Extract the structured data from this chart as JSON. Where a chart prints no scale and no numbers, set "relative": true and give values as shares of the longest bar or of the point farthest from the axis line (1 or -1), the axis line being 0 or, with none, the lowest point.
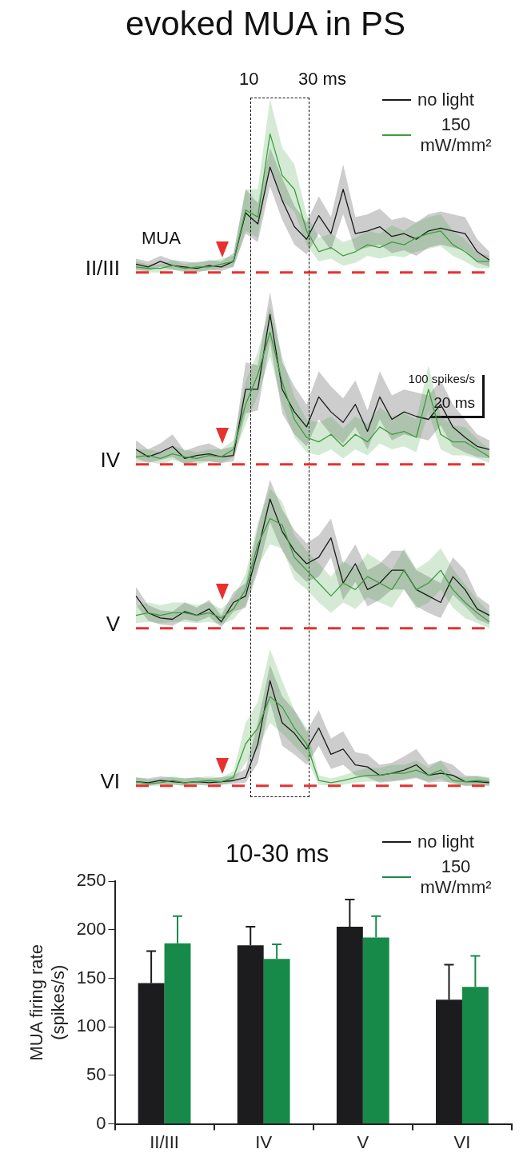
{
  "chart_data": [
    {
      "type": "line",
      "title": "evoked MUA in PS",
      "ylabel": "II/III",
      "relative": true,
      "legend": "top right",
      "annotations": [
        "MUA",
        "10",
        "30 ms",
        "100 spikes/s",
        "20 ms"
      ],
      "categories": [
        null,
        null,
        null,
        null,
        null,
        null,
        null,
        null,
        null,
        null,
        null,
        null,
        null,
        null,
        null,
        null,
        null,
        null,
        null,
        null,
        null,
        null,
        null,
        null,
        null,
        null,
        null,
        null,
        null,
        null
      ],
      "series": [
        {
          "name": "no light",
          "color": "#1a1a1a",
          "values": [
            0.06,
            0.04,
            0.08,
            0.05,
            0.04,
            0.03,
            0.05,
            0.04,
            0.08,
            0.43,
            0.35,
            0.76,
            0.52,
            0.33,
            0.24,
            0.41,
            0.28,
            0.6,
            0.28,
            0.3,
            0.33,
            0.26,
            0.28,
            0.24,
            0.3,
            0.32,
            0.3,
            0.28,
            0.15,
            0.09
          ],
          "upper": [
            0.1,
            0.08,
            0.12,
            0.09,
            0.08,
            0.07,
            0.09,
            0.08,
            0.14,
            0.6,
            0.5,
            0.9,
            0.68,
            0.48,
            0.36,
            0.55,
            0.4,
            0.78,
            0.4,
            0.42,
            0.46,
            0.38,
            0.4,
            0.36,
            0.42,
            0.44,
            0.42,
            0.4,
            0.24,
            0.15
          ],
          "lower": [
            0.02,
            0.01,
            0.04,
            0.02,
            0.01,
            0.0,
            0.02,
            0.01,
            0.04,
            0.28,
            0.22,
            0.62,
            0.38,
            0.2,
            0.13,
            0.28,
            0.16,
            0.42,
            0.16,
            0.18,
            0.2,
            0.14,
            0.16,
            0.12,
            0.18,
            0.2,
            0.18,
            0.16,
            0.07,
            0.04
          ]
        },
        {
          "name": "150 mW/mm²",
          "color": "#3c9e3c",
          "values": [
            0.04,
            0.03,
            0.03,
            0.05,
            0.03,
            0.04,
            0.04,
            0.06,
            0.08,
            0.45,
            0.4,
            1.0,
            0.7,
            0.6,
            0.3,
            0.15,
            0.18,
            0.12,
            0.15,
            0.2,
            0.18,
            0.22,
            0.2,
            0.25,
            0.28,
            0.3,
            0.2,
            0.15,
            0.08,
            0.08
          ],
          "upper": [
            0.08,
            0.06,
            0.06,
            0.09,
            0.06,
            0.08,
            0.08,
            0.1,
            0.12,
            0.6,
            0.6,
            1.25,
            0.9,
            0.78,
            0.42,
            0.25,
            0.28,
            0.22,
            0.25,
            0.3,
            0.28,
            0.34,
            0.3,
            0.36,
            0.4,
            0.42,
            0.3,
            0.24,
            0.14,
            0.12
          ],
          "lower": [
            0.01,
            0.0,
            0.0,
            0.02,
            0.0,
            0.01,
            0.01,
            0.03,
            0.04,
            0.3,
            0.25,
            0.78,
            0.52,
            0.44,
            0.2,
            0.08,
            0.1,
            0.05,
            0.07,
            0.12,
            0.1,
            0.12,
            0.11,
            0.15,
            0.17,
            0.19,
            0.12,
            0.08,
            0.03,
            0.03
          ]
        }
      ]
    },
    {
      "type": "line",
      "ylabel": "IV",
      "relative": true,
      "categories": [
        null,
        null,
        null,
        null,
        null,
        null,
        null,
        null,
        null,
        null,
        null,
        null,
        null,
        null,
        null,
        null,
        null,
        null,
        null,
        null,
        null,
        null,
        null,
        null,
        null,
        null,
        null,
        null,
        null,
        null
      ],
      "series": [
        {
          "color": "#1a1a1a",
          "values": [
            0.1,
            0.05,
            0.08,
            0.12,
            0.04,
            0.06,
            0.07,
            0.05,
            0.06,
            0.5,
            0.5,
            1.0,
            0.5,
            0.35,
            0.25,
            0.45,
            0.35,
            0.28,
            0.4,
            0.22,
            0.45,
            0.3,
            0.35,
            0.32,
            0.3,
            0.4,
            0.25,
            0.18,
            0.12,
            0.1
          ],
          "upper": [
            0.16,
            0.1,
            0.14,
            0.2,
            0.09,
            0.12,
            0.14,
            0.1,
            0.12,
            0.68,
            0.66,
            1.15,
            0.68,
            0.52,
            0.4,
            0.62,
            0.52,
            0.44,
            0.56,
            0.36,
            0.62,
            0.46,
            0.5,
            0.48,
            0.46,
            0.56,
            0.4,
            0.3,
            0.2,
            0.16
          ],
          "lower": [
            0.04,
            0.01,
            0.03,
            0.05,
            0.0,
            0.02,
            0.02,
            0.01,
            0.02,
            0.34,
            0.36,
            0.82,
            0.34,
            0.2,
            0.12,
            0.3,
            0.2,
            0.14,
            0.25,
            0.1,
            0.3,
            0.16,
            0.2,
            0.18,
            0.16,
            0.26,
            0.12,
            0.08,
            0.05,
            0.04
          ]
        },
        {
          "color": "#3c9e3c",
          "values": [
            0.05,
            0.06,
            0.04,
            0.07,
            0.05,
            0.04,
            0.06,
            0.05,
            0.1,
            0.4,
            0.6,
            0.88,
            0.55,
            0.3,
            0.18,
            0.15,
            0.2,
            0.12,
            0.2,
            0.15,
            0.25,
            0.2,
            0.22,
            0.18,
            0.5,
            0.2,
            0.15,
            0.15,
            0.1,
            0.05
          ],
          "upper": [
            0.1,
            0.1,
            0.08,
            0.12,
            0.1,
            0.08,
            0.1,
            0.1,
            0.16,
            0.55,
            0.75,
            1.05,
            0.72,
            0.45,
            0.3,
            0.28,
            0.32,
            0.24,
            0.32,
            0.27,
            0.38,
            0.32,
            0.34,
            0.3,
            0.66,
            0.32,
            0.26,
            0.25,
            0.17,
            0.1
          ],
          "lower": [
            0.01,
            0.02,
            0.0,
            0.03,
            0.01,
            0.0,
            0.02,
            0.01,
            0.05,
            0.27,
            0.46,
            0.72,
            0.4,
            0.18,
            0.08,
            0.06,
            0.1,
            0.04,
            0.1,
            0.06,
            0.14,
            0.1,
            0.12,
            0.08,
            0.35,
            0.1,
            0.06,
            0.06,
            0.04,
            0.01
          ]
        }
      ]
    },
    {
      "type": "line",
      "ylabel": "V",
      "relative": true,
      "categories": [
        null,
        null,
        null,
        null,
        null,
        null,
        null,
        null,
        null,
        null,
        null,
        null,
        null,
        null,
        null,
        null,
        null,
        null,
        null,
        null,
        null,
        null,
        null,
        null,
        null,
        null,
        null,
        null,
        null,
        null
      ],
      "series": [
        {
          "color": "#1a1a1a",
          "values": [
            0.25,
            0.12,
            0.08,
            0.07,
            0.13,
            0.1,
            0.15,
            0.05,
            0.2,
            0.25,
            0.6,
            1.0,
            0.75,
            0.6,
            0.5,
            0.55,
            0.7,
            0.35,
            0.5,
            0.3,
            0.35,
            0.45,
            0.45,
            0.3,
            0.25,
            0.2,
            0.4,
            0.3,
            0.15,
            0.1
          ],
          "upper": [
            0.32,
            0.18,
            0.14,
            0.13,
            0.2,
            0.16,
            0.22,
            0.1,
            0.28,
            0.35,
            0.78,
            1.15,
            0.92,
            0.76,
            0.66,
            0.72,
            0.85,
            0.5,
            0.65,
            0.45,
            0.5,
            0.6,
            0.6,
            0.45,
            0.4,
            0.35,
            0.55,
            0.45,
            0.25,
            0.18
          ],
          "lower": [
            0.18,
            0.06,
            0.03,
            0.02,
            0.07,
            0.05,
            0.09,
            0.01,
            0.13,
            0.16,
            0.44,
            0.82,
            0.6,
            0.45,
            0.36,
            0.4,
            0.55,
            0.22,
            0.36,
            0.17,
            0.22,
            0.3,
            0.3,
            0.17,
            0.12,
            0.08,
            0.26,
            0.17,
            0.07,
            0.03
          ]
        },
        {
          "color": "#3c9e3c",
          "values": [
            0.1,
            0.12,
            0.1,
            0.12,
            0.12,
            0.1,
            0.12,
            0.08,
            0.15,
            0.3,
            0.65,
            0.85,
            0.8,
            0.55,
            0.45,
            0.35,
            0.25,
            0.35,
            0.3,
            0.4,
            0.35,
            0.3,
            0.45,
            0.3,
            0.35,
            0.45,
            0.3,
            0.2,
            0.12,
            0.05
          ],
          "upper": [
            0.17,
            0.2,
            0.18,
            0.2,
            0.2,
            0.18,
            0.2,
            0.15,
            0.24,
            0.42,
            0.82,
            1.08,
            0.98,
            0.72,
            0.6,
            0.5,
            0.4,
            0.52,
            0.46,
            0.58,
            0.52,
            0.45,
            0.62,
            0.46,
            0.52,
            0.62,
            0.46,
            0.34,
            0.22,
            0.12
          ],
          "lower": [
            0.04,
            0.05,
            0.04,
            0.05,
            0.05,
            0.04,
            0.05,
            0.03,
            0.07,
            0.18,
            0.48,
            0.65,
            0.62,
            0.38,
            0.3,
            0.2,
            0.12,
            0.2,
            0.15,
            0.24,
            0.2,
            0.16,
            0.3,
            0.15,
            0.2,
            0.3,
            0.16,
            0.08,
            0.04,
            0.0
          ]
        }
      ]
    },
    {
      "type": "line",
      "ylabel": "VI",
      "relative": true,
      "categories": [
        null,
        null,
        null,
        null,
        null,
        null,
        null,
        null,
        null,
        null,
        null,
        null,
        null,
        null,
        null,
        null,
        null,
        null,
        null,
        null,
        null,
        null,
        null,
        null,
        null,
        null,
        null,
        null,
        null,
        null
      ],
      "series": [
        {
          "color": "#1a1a1a",
          "values": [
            0.04,
            0.03,
            0.05,
            0.04,
            0.03,
            0.04,
            0.03,
            0.04,
            0.05,
            0.08,
            0.4,
            1.0,
            0.6,
            0.5,
            0.35,
            0.55,
            0.3,
            0.35,
            0.2,
            0.18,
            0.1,
            0.12,
            0.15,
            0.2,
            0.1,
            0.12,
            0.1,
            0.04,
            0.04,
            0.03
          ],
          "upper": [
            0.08,
            0.07,
            0.09,
            0.08,
            0.07,
            0.08,
            0.07,
            0.08,
            0.1,
            0.16,
            0.6,
            1.15,
            0.85,
            0.72,
            0.52,
            0.72,
            0.45,
            0.52,
            0.32,
            0.3,
            0.2,
            0.22,
            0.28,
            0.35,
            0.2,
            0.24,
            0.2,
            0.1,
            0.09,
            0.07
          ],
          "lower": [
            0.01,
            0.0,
            0.02,
            0.01,
            0.0,
            0.01,
            0.0,
            0.01,
            0.02,
            0.03,
            0.22,
            0.8,
            0.38,
            0.3,
            0.2,
            0.38,
            0.16,
            0.2,
            0.1,
            0.08,
            0.03,
            0.04,
            0.06,
            0.08,
            0.03,
            0.04,
            0.03,
            0.0,
            0.0,
            0.0
          ]
        },
        {
          "color": "#3c9e3c",
          "values": [
            0.04,
            0.02,
            0.03,
            0.05,
            0.03,
            0.04,
            0.05,
            0.04,
            0.08,
            0.4,
            0.55,
            0.85,
            0.75,
            0.55,
            0.4,
            0.05,
            0.03,
            0.05,
            0.08,
            0.1,
            0.1,
            0.12,
            0.12,
            0.15,
            0.1,
            0.15,
            0.05,
            0.04,
            0.05,
            0.04
          ],
          "upper": [
            0.08,
            0.06,
            0.07,
            0.09,
            0.07,
            0.08,
            0.09,
            0.08,
            0.14,
            0.6,
            0.8,
            1.3,
            1.0,
            0.72,
            0.55,
            0.1,
            0.07,
            0.1,
            0.14,
            0.17,
            0.17,
            0.2,
            0.2,
            0.24,
            0.17,
            0.24,
            0.1,
            0.08,
            0.1,
            0.08
          ],
          "lower": [
            0.01,
            0.0,
            0.0,
            0.02,
            0.0,
            0.01,
            0.02,
            0.01,
            0.04,
            0.22,
            0.35,
            0.6,
            0.5,
            0.38,
            0.26,
            0.01,
            0.0,
            0.01,
            0.03,
            0.04,
            0.04,
            0.05,
            0.05,
            0.07,
            0.04,
            0.07,
            0.01,
            0.0,
            0.01,
            0.0
          ]
        }
      ]
    },
    {
      "type": "bar",
      "title": "10-30 ms",
      "ylabel": "MUA firing rate\n(spikes/s)",
      "categories": [
        "II/III",
        "IV",
        "V",
        "VI"
      ],
      "ylim": [
        0,
        250
      ],
      "yticks": [
        0,
        50,
        100,
        150,
        200,
        250
      ],
      "legend": "top right",
      "series": [
        {
          "name": "no light",
          "color": "#1c1c1e",
          "values": [
            145,
            184,
            203,
            128
          ],
          "errors": [
            [
              145,
              178
            ],
            [
              184,
              203
            ],
            [
              203,
              231
            ],
            [
              128,
              164
            ]
          ]
        },
        {
          "name": "150 mW/mm²",
          "color": "#178a4a",
          "values": [
            186,
            170,
            192,
            141
          ],
          "errors": [
            [
              186,
              214
            ],
            [
              170,
              185
            ],
            [
              192,
              214
            ],
            [
              141,
              173
            ]
          ]
        }
      ]
    }
  ]
}
